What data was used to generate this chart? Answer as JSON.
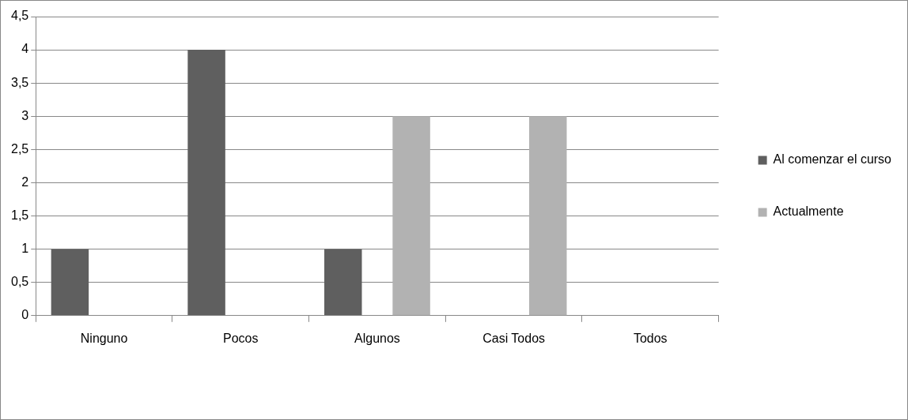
{
  "chart_data": {
    "type": "bar",
    "categories": [
      "Ninguno",
      "Pocos",
      "Algunos",
      "Casi Todos",
      "Todos"
    ],
    "series": [
      {
        "name": "Al comenzar el curso",
        "color": "#5f5f5f",
        "values": [
          1,
          4,
          1,
          0,
          0
        ]
      },
      {
        "name": "Actualmente",
        "color": "#b2b2b2",
        "values": [
          0,
          0,
          3,
          3,
          0
        ]
      }
    ],
    "ylim": [
      0,
      4.5
    ],
    "yticks": [
      0,
      {
        "value": 0.5,
        "label": "0,5"
      },
      1,
      {
        "value": 1.5,
        "label": "1,5"
      },
      2,
      {
        "value": 2.5,
        "label": "2,5"
      },
      3,
      {
        "value": 3.5,
        "label": "3,5"
      },
      4,
      {
        "value": 4.5,
        "label": "4,5"
      }
    ],
    "grid": "y",
    "legend": "right"
  }
}
